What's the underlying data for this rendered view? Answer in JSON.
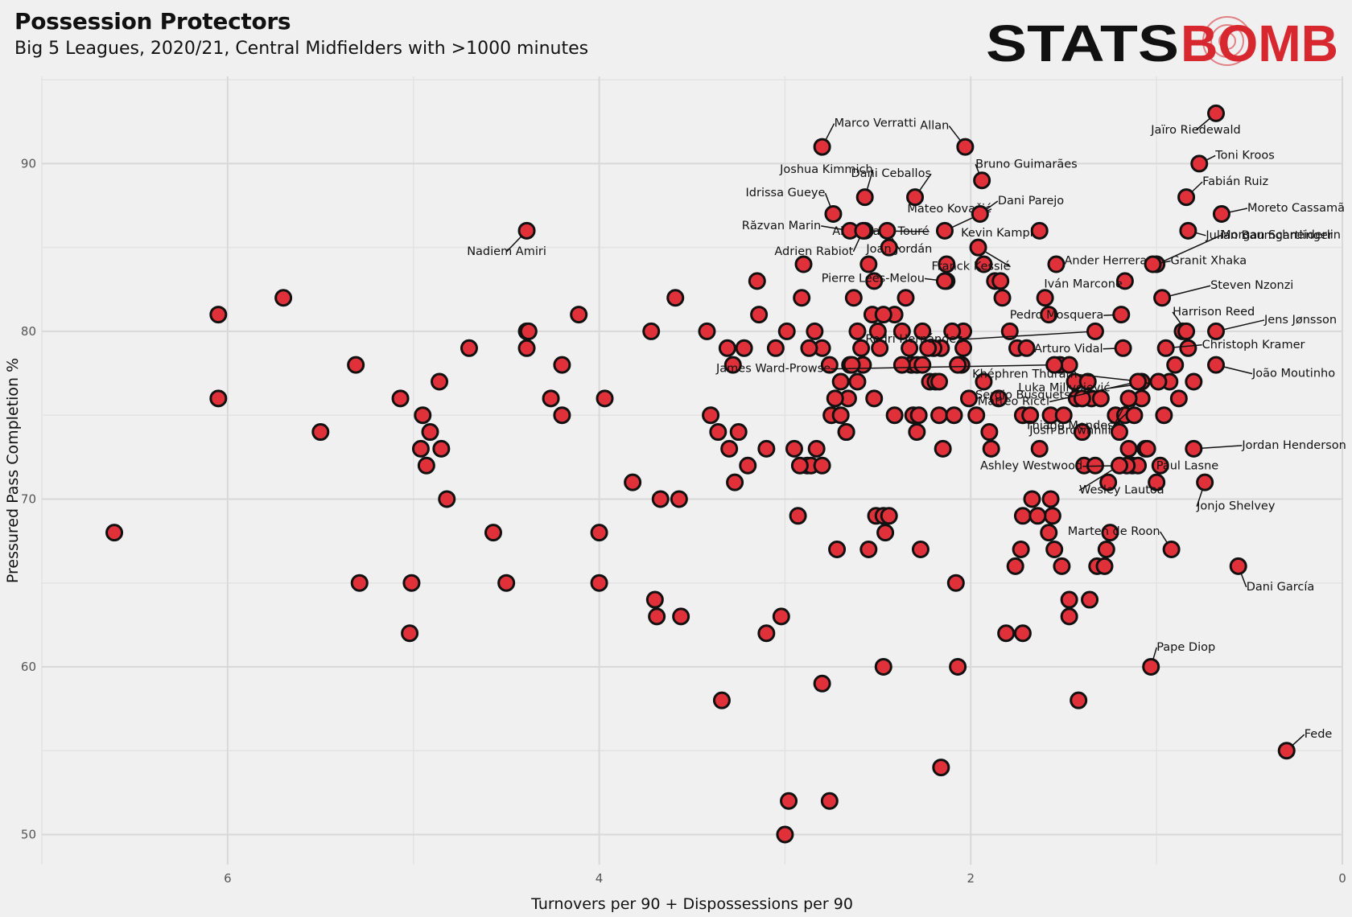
{
  "title": "Possession Protectors",
  "subtitle": "Big 5 Leagues, 2020/21, Central Midfielders with >1000 minutes",
  "logo": {
    "text_left": "STATS",
    "text_right": "BOMB",
    "color_left": "#111111",
    "color_right": "#d7272f"
  },
  "colors": {
    "background": "#f0f0f0",
    "grid": "#d8d8d8",
    "point_fill": "#e0313a",
    "point_stroke": "#111111"
  },
  "chart_data": {
    "type": "scatter",
    "title": "Possession Protectors",
    "subtitle": "Big 5 Leagues, 2020/21, Central Midfielders with >1000 minutes",
    "xlabel": "Turnovers per 90 + Dispossessions per 90",
    "ylabel": "Pressured Pass Completion %",
    "x_reversed": true,
    "xlim": [
      7.0,
      0.0
    ],
    "ylim": [
      48.2,
      95.2
    ],
    "x_ticks": [
      6,
      4,
      2,
      0
    ],
    "y_ticks": [
      50,
      60,
      70,
      80,
      90
    ],
    "grid": true,
    "labeled_points": [
      {
        "name": "Jaïro Riedewald",
        "x": 0.68,
        "y": 93.0
      },
      {
        "name": "Marco Verratti",
        "x": 2.8,
        "y": 91.0
      },
      {
        "name": "Allan",
        "x": 2.03,
        "y": 91.0
      },
      {
        "name": "Toni Kroos",
        "x": 0.77,
        "y": 90.0
      },
      {
        "name": "Bruno Guimarães",
        "x": 1.94,
        "y": 89.0
      },
      {
        "name": "Joshua Kimmich",
        "x": 2.57,
        "y": 88.0
      },
      {
        "name": "Dani Ceballos",
        "x": 2.3,
        "y": 88.0
      },
      {
        "name": "Fabián Ruiz",
        "x": 0.84,
        "y": 88.0
      },
      {
        "name": "Idrissa Gueye",
        "x": 2.74,
        "y": 87.0
      },
      {
        "name": "Abdoulaye Touré",
        "x": 2.57,
        "y": 86.0
      },
      {
        "name": "Mateo Kovačić",
        "x": 2.14,
        "y": 86.0
      },
      {
        "name": "Dani Parejo",
        "x": 1.95,
        "y": 87.0
      },
      {
        "name": "Moreto Cassamã",
        "x": 0.65,
        "y": 87.0
      },
      {
        "name": "Răzvan Marin",
        "x": 2.65,
        "y": 86.0
      },
      {
        "name": "Kevin Kampl",
        "x": 1.63,
        "y": 86.0
      },
      {
        "name": "Julian Baumgartlinger",
        "x": 0.83,
        "y": 86.0
      },
      {
        "name": "Nadiem Amiri",
        "x": 4.39,
        "y": 86.0
      },
      {
        "name": "Adrien Rabiot",
        "x": 2.58,
        "y": 86.0
      },
      {
        "name": "Joan Jordán",
        "x": 2.45,
        "y": 86.0
      },
      {
        "name": "Morgan Schneiderlin",
        "x": 1.0,
        "y": 84.0
      },
      {
        "name": "Ander Herrera",
        "x": 1.54,
        "y": 84.0
      },
      {
        "name": "Franck Kessié",
        "x": 1.96,
        "y": 85.0
      },
      {
        "name": "Granit Xhaka",
        "x": 1.02,
        "y": 84.0
      },
      {
        "name": "Pierre Lees-Melou",
        "x": 2.14,
        "y": 83.0
      },
      {
        "name": "Iván Marcone",
        "x": 1.17,
        "y": 83.0
      },
      {
        "name": "Steven Nzonzi",
        "x": 0.97,
        "y": 82.0
      },
      {
        "name": "Pedro Mosquera",
        "x": 1.19,
        "y": 81.0
      },
      {
        "name": "Harrison Reed",
        "x": 0.84,
        "y": 80.0
      },
      {
        "name": "Jens Jønsson",
        "x": 0.68,
        "y": 80.0
      },
      {
        "name": "Rodri Hernández",
        "x": 1.33,
        "y": 80.0
      },
      {
        "name": "Arturo Vidal",
        "x": 1.18,
        "y": 79.0
      },
      {
        "name": "Christoph Kramer",
        "x": 0.95,
        "y": 79.0
      },
      {
        "name": "James Ward-Prowse",
        "x": 1.55,
        "y": 78.0
      },
      {
        "name": "Khéphren Thuram",
        "x": 1.08,
        "y": 77.0
      },
      {
        "name": "João Moutinho",
        "x": 0.68,
        "y": 78.0
      },
      {
        "name": "Sergio Busquets",
        "x": 1.4,
        "y": 76.0
      },
      {
        "name": "Luka Milivojević",
        "x": 0.99,
        "y": 77.0
      },
      {
        "name": "Matteo Ricci",
        "x": 1.1,
        "y": 77.0
      },
      {
        "name": "Thiago Mendes",
        "x": 1.08,
        "y": 76.0
      },
      {
        "name": "Josh Brownhill",
        "x": 1.15,
        "y": 76.0
      },
      {
        "name": "Jordan Henderson",
        "x": 0.8,
        "y": 73.0
      },
      {
        "name": "Paul Lasne",
        "x": 0.98,
        "y": 72.0
      },
      {
        "name": "Ashley Westwood",
        "x": 1.16,
        "y": 72.0
      },
      {
        "name": "Jonjo Shelvey",
        "x": 0.74,
        "y": 71.0
      },
      {
        "name": "Wesley Lautoa",
        "x": 1.2,
        "y": 72.0
      },
      {
        "name": "Marten de Roon",
        "x": 0.92,
        "y": 67.0
      },
      {
        "name": "Dani García",
        "x": 0.56,
        "y": 66.0
      },
      {
        "name": "Pape Diop",
        "x": 1.03,
        "y": 60.0
      },
      {
        "name": "Fede",
        "x": 0.3,
        "y": 55.0
      }
    ],
    "unlabeled_points": [
      [
        6.61,
        68
      ],
      [
        6.05,
        81
      ],
      [
        6.05,
        76
      ],
      [
        5.7,
        82
      ],
      [
        5.5,
        74
      ],
      [
        5.31,
        78
      ],
      [
        5.29,
        65
      ],
      [
        5.07,
        76
      ],
      [
        5.01,
        65
      ],
      [
        5.02,
        62
      ],
      [
        4.96,
        73
      ],
      [
        4.95,
        75
      ],
      [
        4.93,
        72
      ],
      [
        4.91,
        74
      ],
      [
        4.86,
        77
      ],
      [
        4.85,
        73
      ],
      [
        4.82,
        70
      ],
      [
        4.7,
        79
      ],
      [
        4.57,
        68
      ],
      [
        4.5,
        65
      ],
      [
        4.39,
        80
      ],
      [
        4.39,
        79
      ],
      [
        4.38,
        80
      ],
      [
        4.26,
        76
      ],
      [
        4.2,
        78
      ],
      [
        4.2,
        75
      ],
      [
        4.11,
        81
      ],
      [
        4.0,
        68
      ],
      [
        4.0,
        65
      ],
      [
        3.97,
        76
      ],
      [
        3.82,
        71
      ],
      [
        3.72,
        80
      ],
      [
        3.7,
        64
      ],
      [
        3.69,
        63
      ],
      [
        3.67,
        70
      ],
      [
        3.59,
        82
      ],
      [
        3.57,
        70
      ],
      [
        3.56,
        63
      ],
      [
        3.42,
        80
      ],
      [
        3.4,
        75
      ],
      [
        3.36,
        74
      ],
      [
        3.34,
        58
      ],
      [
        3.31,
        79
      ],
      [
        3.3,
        73
      ],
      [
        3.28,
        78
      ],
      [
        3.27,
        71
      ],
      [
        3.25,
        74
      ],
      [
        3.2,
        72
      ],
      [
        3.22,
        79
      ],
      [
        3.14,
        81
      ],
      [
        3.15,
        83
      ],
      [
        3.1,
        62
      ],
      [
        3.1,
        73
      ],
      [
        3.05,
        79
      ],
      [
        3.02,
        63
      ],
      [
        2.99,
        80
      ],
      [
        2.91,
        82
      ],
      [
        2.9,
        84
      ],
      [
        2.88,
        72
      ],
      [
        2.86,
        72
      ],
      [
        2.83,
        73
      ],
      [
        2.8,
        72
      ],
      [
        2.8,
        59
      ],
      [
        2.75,
        75
      ],
      [
        2.7,
        77
      ],
      [
        2.72,
        67
      ],
      [
        2.67,
        74
      ],
      [
        2.66,
        76
      ],
      [
        2.65,
        78
      ],
      [
        2.63,
        82
      ],
      [
        2.61,
        80
      ],
      [
        2.58,
        78
      ],
      [
        2.53,
        81
      ],
      [
        2.52,
        76
      ],
      [
        2.51,
        69
      ],
      [
        2.49,
        79
      ],
      [
        2.47,
        69
      ],
      [
        2.46,
        68
      ],
      [
        2.44,
        69
      ],
      [
        2.41,
        81
      ],
      [
        2.37,
        80
      ],
      [
        2.32,
        78
      ],
      [
        2.31,
        75
      ],
      [
        2.29,
        78
      ],
      [
        2.27,
        67
      ],
      [
        2.26,
        78
      ],
      [
        2.22,
        77
      ],
      [
        2.19,
        77
      ],
      [
        2.17,
        77
      ],
      [
        2.17,
        75
      ],
      [
        2.16,
        54
      ],
      [
        2.15,
        73
      ],
      [
        2.13,
        84
      ],
      [
        2.08,
        65
      ],
      [
        2.07,
        60
      ],
      [
        2.04,
        79
      ],
      [
        1.93,
        84
      ],
      [
        1.87,
        83
      ],
      [
        1.84,
        83
      ],
      [
        1.83,
        82
      ],
      [
        1.79,
        80
      ],
      [
        1.75,
        79
      ],
      [
        1.72,
        75
      ],
      [
        1.72,
        69
      ],
      [
        1.7,
        79
      ],
      [
        1.68,
        75
      ],
      [
        1.63,
        73
      ],
      [
        1.6,
        82
      ],
      [
        1.58,
        81
      ],
      [
        1.57,
        75
      ],
      [
        1.57,
        70
      ],
      [
        1.56,
        69
      ],
      [
        1.52,
        78
      ],
      [
        1.5,
        75
      ],
      [
        1.47,
        78
      ],
      [
        1.44,
        77
      ],
      [
        1.43,
        76
      ],
      [
        1.4,
        74
      ],
      [
        1.39,
        72
      ],
      [
        1.37,
        77
      ],
      [
        1.35,
        76
      ],
      [
        1.33,
        72
      ],
      [
        1.3,
        76
      ],
      [
        1.26,
        71
      ],
      [
        1.25,
        68
      ],
      [
        1.22,
        75
      ],
      [
        1.2,
        74
      ],
      [
        1.17,
        75
      ],
      [
        1.15,
        73
      ],
      [
        1.13,
        72
      ],
      [
        1.12,
        75
      ],
      [
        1.1,
        72
      ],
      [
        1.06,
        73
      ],
      [
        1.05,
        73
      ],
      [
        1.0,
        71
      ],
      [
        0.96,
        75
      ],
      [
        0.93,
        77
      ],
      [
        0.9,
        78
      ],
      [
        0.88,
        76
      ],
      [
        0.86,
        80
      ],
      [
        0.83,
        79
      ],
      [
        0.8,
        77
      ],
      [
        1.32,
        66
      ],
      [
        1.28,
        66
      ],
      [
        1.27,
        67
      ],
      [
        1.36,
        64
      ],
      [
        1.42,
        58
      ],
      [
        1.47,
        63
      ],
      [
        1.47,
        64
      ],
      [
        1.51,
        66
      ],
      [
        1.55,
        67
      ],
      [
        1.58,
        68
      ],
      [
        1.64,
        69
      ],
      [
        1.67,
        70
      ],
      [
        1.72,
        62
      ],
      [
        1.73,
        67
      ],
      [
        1.76,
        66
      ],
      [
        1.81,
        62
      ],
      [
        1.85,
        76
      ],
      [
        1.89,
        73
      ],
      [
        1.9,
        74
      ],
      [
        1.93,
        77
      ],
      [
        1.97,
        75
      ],
      [
        2.01,
        76
      ],
      [
        2.04,
        80
      ],
      [
        2.05,
        78
      ],
      [
        2.07,
        78
      ],
      [
        2.09,
        75
      ],
      [
        2.1,
        80
      ],
      [
        2.13,
        83
      ],
      [
        2.16,
        79
      ],
      [
        2.2,
        79
      ],
      [
        2.23,
        79
      ],
      [
        2.26,
        80
      ],
      [
        2.28,
        75
      ],
      [
        2.29,
        74
      ],
      [
        2.33,
        79
      ],
      [
        2.35,
        82
      ],
      [
        2.37,
        78
      ],
      [
        2.41,
        75
      ],
      [
        2.44,
        85
      ],
      [
        2.47,
        81
      ],
      [
        2.5,
        80
      ],
      [
        2.52,
        83
      ],
      [
        2.55,
        84
      ],
      [
        2.59,
        79
      ],
      [
        2.61,
        77
      ],
      [
        2.64,
        78
      ],
      [
        2.67,
        74
      ],
      [
        2.7,
        75
      ],
      [
        2.73,
        76
      ],
      [
        2.76,
        78
      ],
      [
        2.8,
        79
      ],
      [
        2.84,
        80
      ],
      [
        2.87,
        79
      ],
      [
        2.92,
        72
      ],
      [
        2.95,
        73
      ],
      [
        3.0,
        50
      ],
      [
        2.98,
        52
      ],
      [
        2.93,
        69
      ],
      [
        2.76,
        52
      ],
      [
        2.55,
        67
      ],
      [
        2.47,
        60
      ]
    ]
  }
}
